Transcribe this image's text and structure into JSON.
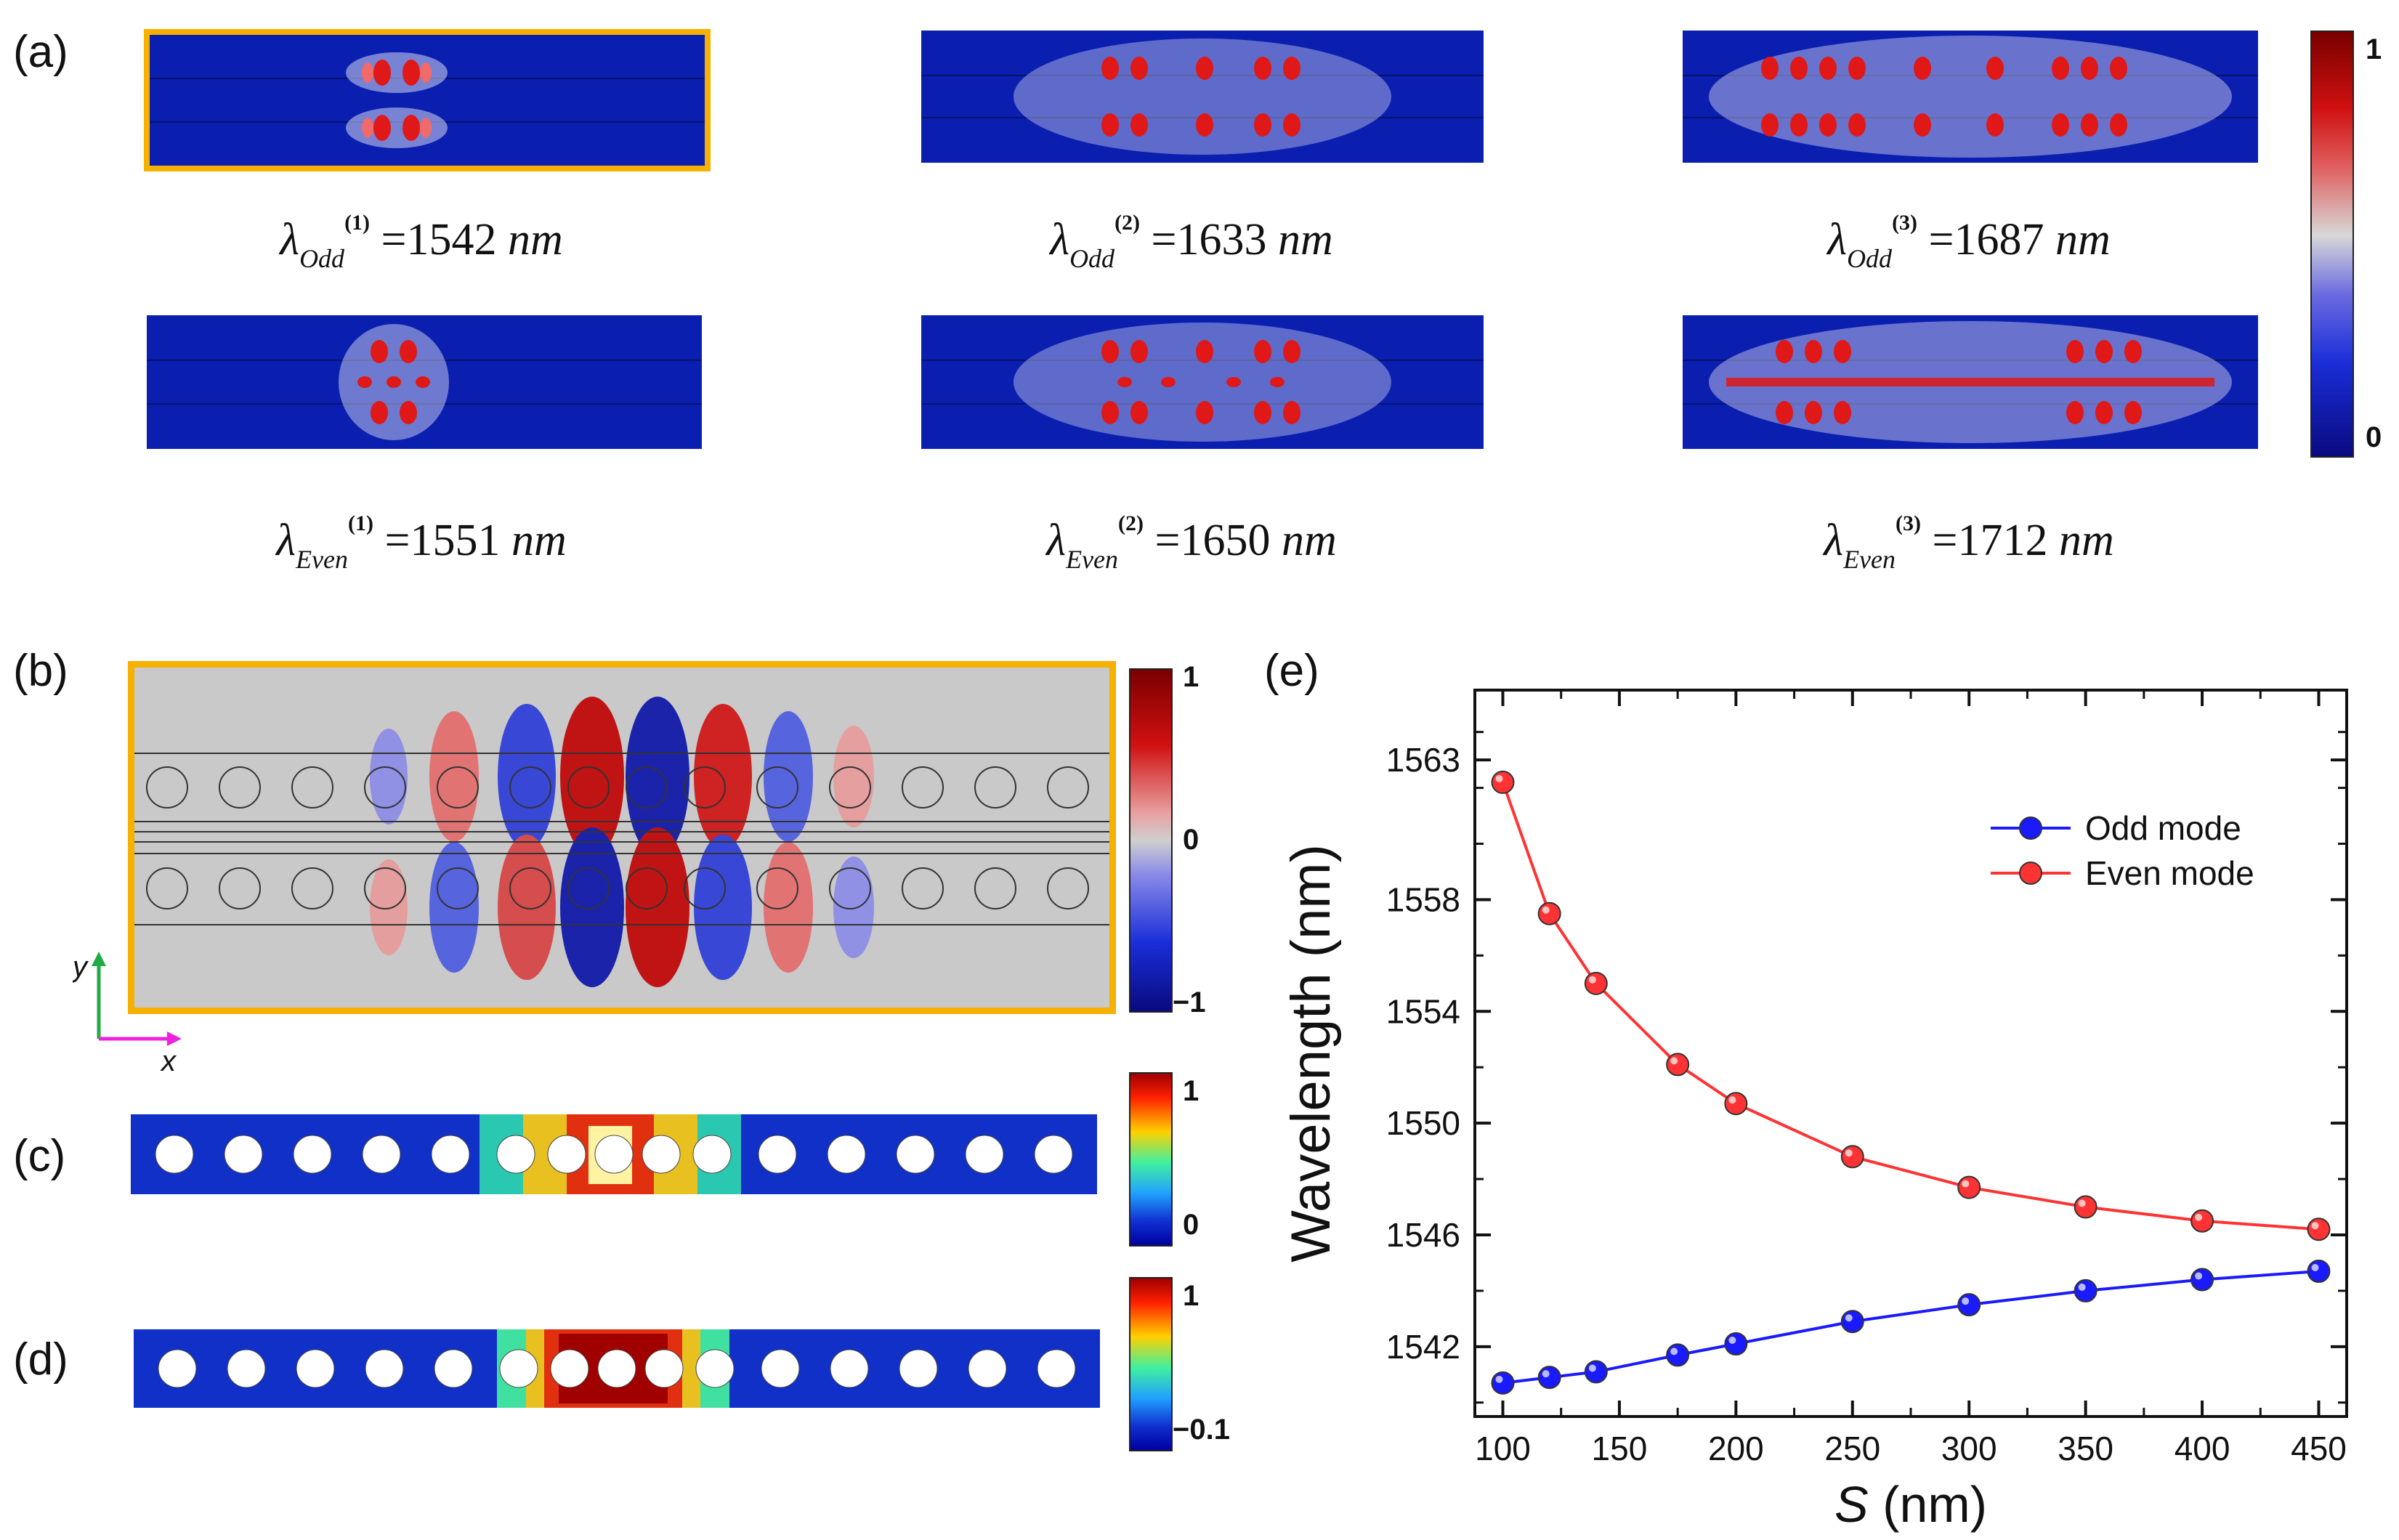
{
  "panel_labels": {
    "a": "(a)",
    "b": "(b)",
    "c": "(c)",
    "d": "(d)",
    "e": "(e)"
  },
  "panel_a": {
    "colorbar": {
      "max_label": "1",
      "min_label": "0"
    },
    "modes": [
      {
        "symbol": "λ",
        "sub": "Odd",
        "sup": "(1)",
        "value": "=1542",
        "unit": "nm"
      },
      {
        "symbol": "λ",
        "sub": "Odd",
        "sup": "(2)",
        "value": "=1633",
        "unit": "nm"
      },
      {
        "symbol": "λ",
        "sub": "Odd",
        "sup": "(3)",
        "value": "=1687",
        "unit": "nm"
      },
      {
        "symbol": "λ",
        "sub": "Even",
        "sup": "(1)",
        "value": "=1551",
        "unit": "nm"
      },
      {
        "symbol": "λ",
        "sub": "Even",
        "sup": "(2)",
        "value": "=1650",
        "unit": "nm"
      },
      {
        "symbol": "λ",
        "sub": "Even",
        "sup": "(3)",
        "value": "=1712",
        "unit": "nm"
      }
    ]
  },
  "panel_b": {
    "colorbar": {
      "max_label": "1",
      "mid_label": "0",
      "min_label": "−1"
    },
    "axes": {
      "y_label": "y",
      "x_label": "x"
    }
  },
  "panel_c": {
    "colorbar": {
      "max_label": "1",
      "min_label": "0"
    }
  },
  "panel_d": {
    "colorbar": {
      "max_label": "1",
      "min_label": "−0.1"
    }
  },
  "colors": {
    "highlight_frame": "#f5b000",
    "odd_series": "#1a1aff",
    "even_series": "#ff3333",
    "axis_arrow_y": "#22aa44",
    "axis_arrow_x": "#ee22dd"
  },
  "chart_data": {
    "type": "line",
    "title": "",
    "xlabel_var": "S",
    "xlabel_unit": "(nm)",
    "ylabel": "Wavelength (nm)",
    "xlim": [
      88,
      462
    ],
    "ylim": [
      1539.5,
      1565.5
    ],
    "xticks": [
      100,
      150,
      200,
      250,
      300,
      350,
      400,
      450
    ],
    "yticks": [
      1542,
      1546,
      1550,
      1554,
      1558,
      1563
    ],
    "legend_position": "upper-right",
    "x": [
      100,
      120,
      140,
      175,
      200,
      250,
      300,
      350,
      400,
      450
    ],
    "series": [
      {
        "name": "Odd mode",
        "color": "#1a1aff",
        "values": [
          1540.7,
          1540.9,
          1541.1,
          1541.7,
          1542.1,
          1542.9,
          1543.5,
          1544.0,
          1544.4,
          1544.7
        ]
      },
      {
        "name": "Even mode",
        "color": "#ff3333",
        "values": [
          1562.2,
          1557.5,
          1555.0,
          1552.1,
          1550.7,
          1548.8,
          1547.7,
          1547.0,
          1546.5,
          1546.2
        ]
      }
    ]
  }
}
